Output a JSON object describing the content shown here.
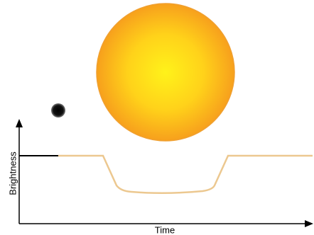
{
  "labels": {
    "y_axis": "Brightness",
    "x_axis": "Time"
  }
}
